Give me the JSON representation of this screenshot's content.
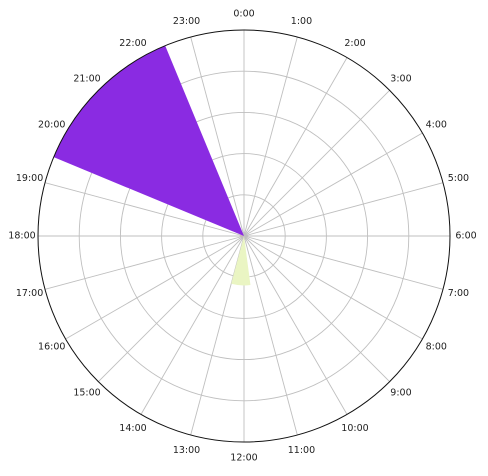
{
  "chart_data": {
    "type": "polar-bar",
    "title": "",
    "angular_tick_labels": [
      "0:00",
      "1:00",
      "2:00",
      "3:00",
      "4:00",
      "5:00",
      "6:00",
      "7:00",
      "8:00",
      "9:00",
      "10:00",
      "11:00",
      "12:00",
      "13:00",
      "14:00",
      "15:00",
      "16:00",
      "17:00",
      "18:00",
      "19:00",
      "20:00",
      "21:00",
      "22:00",
      "23:00"
    ],
    "angular_direction": "clockwise",
    "angular_zero": "top",
    "radial_gridlines": 5,
    "radial_max": 1.0,
    "grid": true,
    "bars": [
      {
        "hour_start": 19.5,
        "hour_end": 22.5,
        "value": 1.0,
        "color": "#8a2be2"
      },
      {
        "hour_start": 11.5,
        "hour_end": 13.0,
        "value": 0.24,
        "color": "#eaf5c3"
      },
      {
        "hour_start": 17.75,
        "hour_end": 18.2,
        "value": 0.02,
        "color": "#ff9a9a"
      }
    ]
  }
}
